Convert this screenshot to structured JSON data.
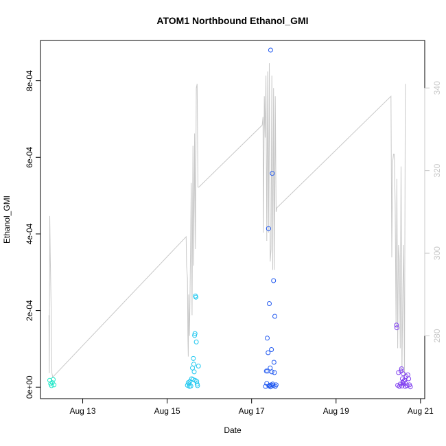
{
  "chart_data": {
    "type": "scatter",
    "title": "ATOM1 Northbound Ethanol_GMI",
    "xlabel": "Date",
    "ylabel": "Ethanol_GMI",
    "ylabel_right": "",
    "x_ticks": [
      "Aug 13",
      "Aug 15",
      "Aug 17",
      "Aug 19",
      "Aug 21"
    ],
    "x_tick_days": [
      13,
      15,
      17,
      19,
      21
    ],
    "xlim_days": [
      12.0,
      21.1
    ],
    "y_ticks": [
      "0e+00",
      "2e-04",
      "4e-04",
      "6e-04",
      "8e-04"
    ],
    "y_tick_values": [
      0,
      0.0002,
      0.0004,
      0.0006,
      0.0008
    ],
    "ylim": [
      -3e-05,
      0.000905
    ],
    "y2_ticks": [
      "280",
      "300",
      "320",
      "340"
    ],
    "y2_tick_values": [
      280,
      300,
      320,
      340
    ],
    "y2lim": [
      264.8,
      351.5
    ],
    "grid": false,
    "series": [
      {
        "color": "#20e8c8",
        "points": [
          [
            12.22,
            1.8e-05
          ],
          [
            12.24,
            9e-06
          ],
          [
            12.26,
            4e-06
          ],
          [
            12.28,
            1.2e-05
          ],
          [
            12.3,
            2e-05
          ],
          [
            12.32,
            6e-06
          ]
        ]
      },
      {
        "color": "#20c8f0",
        "points": [
          [
            15.48,
            5e-06
          ],
          [
            15.5,
            1.2e-05
          ],
          [
            15.52,
            8e-06
          ],
          [
            15.54,
            1.5e-05
          ],
          [
            15.56,
            3e-06
          ],
          [
            15.58,
            2.2e-05
          ],
          [
            15.6,
            5e-05
          ],
          [
            15.62,
            7.5e-05
          ],
          [
            15.63,
            6e-05
          ],
          [
            15.64,
            4e-05
          ],
          [
            15.65,
            0.000135
          ],
          [
            15.66,
            0.00014
          ],
          [
            15.67,
            0.000238
          ],
          [
            15.68,
            0.000235
          ],
          [
            15.69,
            0.000118
          ],
          [
            15.7,
            1.5e-05
          ],
          [
            15.72,
            4e-06
          ],
          [
            15.74,
            5.5e-05
          ],
          [
            15.61,
            2e-05
          ],
          [
            15.66,
            1.8e-05
          ],
          [
            15.53,
            2e-06
          ],
          [
            15.71,
            8e-06
          ]
        ]
      },
      {
        "color": "#2058f0",
        "points": [
          [
            17.33,
            2e-06
          ],
          [
            17.35,
            4.2e-05
          ],
          [
            17.36,
            1e-05
          ],
          [
            17.37,
            0.000128
          ],
          [
            17.38,
            4.2e-05
          ],
          [
            17.39,
            9e-05
          ],
          [
            17.4,
            0.000414
          ],
          [
            17.41,
            3e-06
          ],
          [
            17.42,
            0.000218
          ],
          [
            17.43,
            5e-06
          ],
          [
            17.44,
            5e-05
          ],
          [
            17.45,
            0.00088
          ],
          [
            17.46,
            6e-06
          ],
          [
            17.47,
            9.8e-05
          ],
          [
            17.48,
            4e-05
          ],
          [
            17.49,
            0.000558
          ],
          [
            17.5,
            8e-06
          ],
          [
            17.51,
            4e-06
          ],
          [
            17.52,
            0.000278
          ],
          [
            17.53,
            6.5e-05
          ],
          [
            17.54,
            3.8e-05
          ],
          [
            17.55,
            0.000185
          ],
          [
            17.56,
            2e-06
          ],
          [
            17.58,
            6e-06
          ],
          [
            17.45,
            1e-06
          ]
        ]
      },
      {
        "color": "#8040f0",
        "points": [
          [
            20.43,
            0.000162
          ],
          [
            20.44,
            0.000155
          ],
          [
            20.46,
            5e-06
          ],
          [
            20.48,
            3.8e-05
          ],
          [
            20.5,
            2e-06
          ],
          [
            20.52,
            8e-06
          ],
          [
            20.54,
            4.2e-05
          ],
          [
            20.55,
            4.8e-05
          ],
          [
            20.56,
            3e-06
          ],
          [
            20.57,
            2.2e-05
          ],
          [
            20.58,
            1.2e-05
          ],
          [
            20.59,
            3.5e-05
          ],
          [
            20.6,
            8e-06
          ],
          [
            20.62,
            1.8e-05
          ],
          [
            20.64,
            2e-06
          ],
          [
            20.66,
            2.8e-05
          ],
          [
            20.68,
            4e-06
          ],
          [
            20.7,
            3.2e-05
          ],
          [
            20.72,
            2.2e-05
          ],
          [
            20.74,
            6e-06
          ],
          [
            20.76,
            1e-06
          ],
          [
            20.6,
            1.5e-05
          ],
          [
            20.65,
            9e-06
          ]
        ]
      }
    ],
    "line_series": {
      "color": "#c8c8c8",
      "axis": "right",
      "points": [
        [
          12.2,
          285
        ],
        [
          12.21,
          271
        ],
        [
          12.22,
          309
        ],
        [
          12.23,
          300
        ],
        [
          12.25,
          288
        ],
        [
          12.27,
          271
        ],
        [
          12.29,
          270
        ],
        [
          15.45,
          304
        ],
        [
          15.46,
          297
        ],
        [
          15.48,
          294
        ],
        [
          15.49,
          280
        ],
        [
          15.5,
          275
        ],
        [
          15.51,
          290
        ],
        [
          15.53,
          280
        ],
        [
          15.55,
          298
        ],
        [
          15.57,
          317
        ],
        [
          15.59,
          285
        ],
        [
          15.61,
          326
        ],
        [
          15.63,
          297
        ],
        [
          15.65,
          329
        ],
        [
          15.67,
          301
        ],
        [
          15.69,
          340
        ],
        [
          15.71,
          341
        ],
        [
          15.73,
          316
        ],
        [
          15.75,
          316
        ],
        [
          17.25,
          331
        ],
        [
          17.27,
          333
        ],
        [
          17.28,
          305
        ],
        [
          17.3,
          338
        ],
        [
          17.32,
          328
        ],
        [
          17.34,
          343
        ],
        [
          17.36,
          303
        ],
        [
          17.38,
          344
        ],
        [
          17.4,
          305
        ],
        [
          17.42,
          346
        ],
        [
          17.44,
          298
        ],
        [
          17.46,
          301
        ],
        [
          17.48,
          343
        ],
        [
          17.5,
          296
        ],
        [
          17.52,
          340
        ],
        [
          17.54,
          296
        ],
        [
          17.56,
          338
        ],
        [
          17.58,
          310
        ],
        [
          17.6,
          311
        ],
        [
          20.3,
          338
        ],
        [
          20.32,
          299
        ],
        [
          20.34,
          322
        ],
        [
          20.36,
          324
        ],
        [
          20.38,
          324
        ],
        [
          20.4,
          312
        ],
        [
          20.42,
          282
        ],
        [
          20.44,
          318
        ],
        [
          20.46,
          277
        ],
        [
          20.48,
          302
        ],
        [
          20.5,
          298
        ],
        [
          20.52,
          277
        ],
        [
          20.54,
          321
        ],
        [
          20.56,
          271
        ],
        [
          20.58,
          290
        ],
        [
          20.6,
          302
        ],
        [
          20.62,
          270
        ],
        [
          20.64,
          341
        ]
      ]
    }
  }
}
